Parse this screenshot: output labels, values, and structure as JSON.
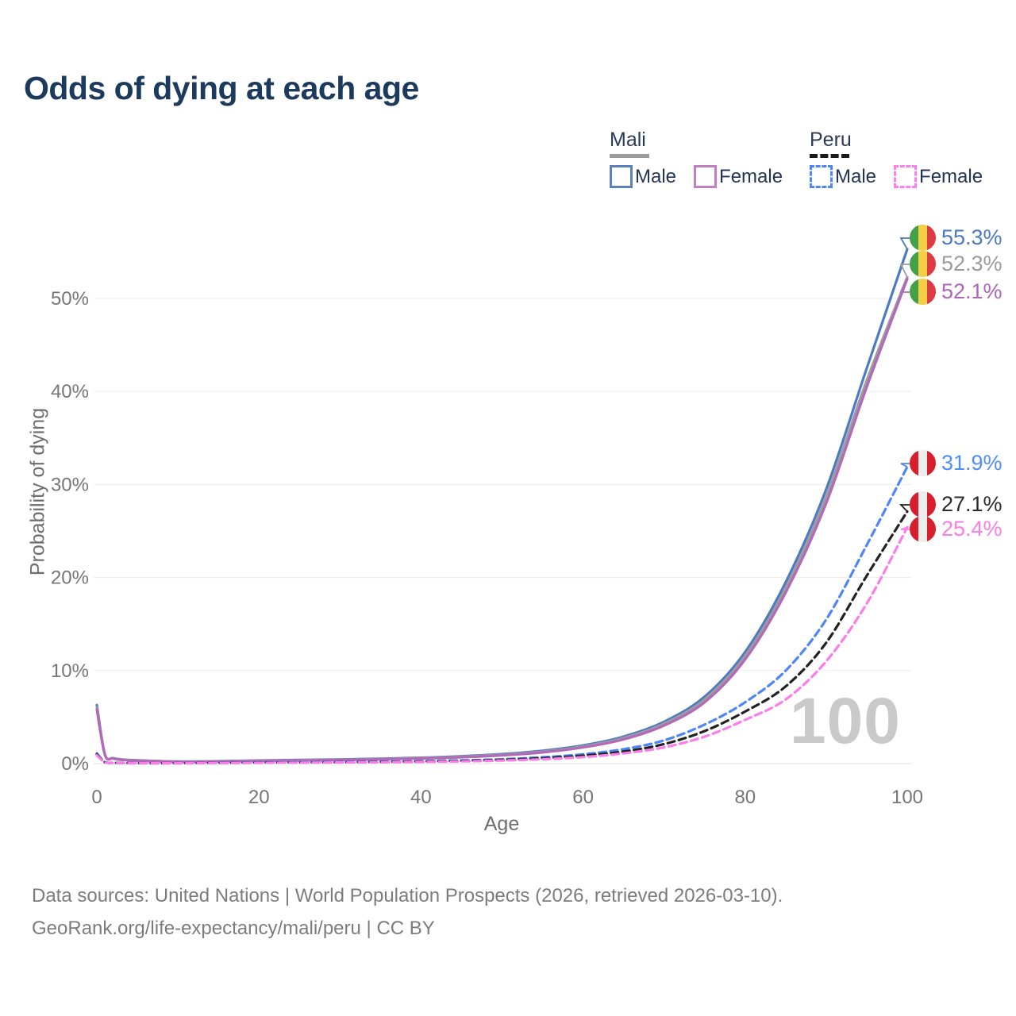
{
  "title": "Odds of dying at each age",
  "watermark": "100",
  "legend": {
    "groups": [
      {
        "name": "Mali",
        "line_style": "solid",
        "underline_color": "#9b9b9b",
        "items": [
          {
            "label": "Male",
            "color": "#5b80ba"
          },
          {
            "label": "Female",
            "color": "#c07fbe"
          }
        ]
      },
      {
        "name": "Peru",
        "line_style": "dashed",
        "underline_color": "#1a1a1a",
        "items": [
          {
            "label": "Male",
            "color": "#4f86f7"
          },
          {
            "label": "Female",
            "color": "#fc7ef0"
          }
        ]
      }
    ]
  },
  "axes": {
    "x": {
      "label": "Age",
      "tick_labels": [
        "0",
        "20",
        "40",
        "60",
        "80",
        "100"
      ]
    },
    "y": {
      "label": "Probability of dying",
      "tick_labels": [
        "0%",
        "10%",
        "20%",
        "30%",
        "40%",
        "50%"
      ]
    }
  },
  "flags": {
    "mali": [
      "#43a047",
      "#f4cf45",
      "#dc3a45"
    ],
    "peru": [
      "#d81f2e",
      "#ededed",
      "#d81f2e"
    ]
  },
  "footer": {
    "line1": "Data sources: United Nations | World Population Prospects (2026, retrieved 2026-03-10).",
    "line2": "GeoRank.org/life-expectancy/mali/peru | CC BY"
  },
  "chart_data": {
    "type": "line",
    "title": "Odds of dying at each age",
    "xlabel": "Age",
    "ylabel": "Probability of dying",
    "x_ticks": [
      0,
      20,
      40,
      60,
      80,
      100
    ],
    "y_ticks_pct": [
      0,
      10,
      20,
      30,
      40,
      50
    ],
    "xlim": [
      0,
      100
    ],
    "ylim_pct": [
      0,
      56
    ],
    "grid": "horizontal",
    "legend_position": "top-right",
    "ages": [
      0,
      1,
      2,
      3,
      5,
      10,
      15,
      20,
      25,
      30,
      35,
      40,
      45,
      50,
      55,
      60,
      65,
      70,
      75,
      80,
      85,
      90,
      95,
      100
    ],
    "series": [
      {
        "name": "Mali Male",
        "country": "Mali",
        "sex": "Male",
        "style": "solid",
        "color": "#4d7ac2",
        "label_color": "#4b79c0",
        "end_label": "55.3%",
        "flag": "mali",
        "values_pct": [
          6.3,
          1.0,
          0.6,
          0.45,
          0.35,
          0.22,
          0.26,
          0.33,
          0.39,
          0.45,
          0.53,
          0.63,
          0.79,
          1.02,
          1.38,
          1.95,
          2.9,
          4.5,
          7.2,
          12.0,
          19.5,
          29.5,
          42.5,
          55.3
        ]
      },
      {
        "name": "Mali Both sexes",
        "country": "Mali",
        "sex": "Both",
        "style": "solid",
        "color": "#9d9d9d",
        "label_color": "#9b9b9b",
        "end_label": "52.3%",
        "flag": "mali",
        "values_pct": [
          6.05,
          0.97,
          0.57,
          0.42,
          0.33,
          0.21,
          0.24,
          0.3,
          0.36,
          0.41,
          0.49,
          0.59,
          0.73,
          0.95,
          1.28,
          1.84,
          2.75,
          4.3,
          6.9,
          11.6,
          18.9,
          28.7,
          41.2,
          52.3
        ]
      },
      {
        "name": "Mali Female",
        "country": "Mali",
        "sex": "Female",
        "style": "solid",
        "color": "#b269b8",
        "label_color": "#ab66b8",
        "end_label": "52.1%",
        "flag": "mali",
        "values_pct": [
          5.8,
          0.93,
          0.55,
          0.4,
          0.31,
          0.2,
          0.22,
          0.28,
          0.33,
          0.38,
          0.45,
          0.55,
          0.68,
          0.89,
          1.2,
          1.74,
          2.6,
          4.1,
          6.6,
          11.2,
          18.4,
          28.0,
          40.5,
          52.1
        ]
      },
      {
        "name": "Peru Male",
        "country": "Peru",
        "sex": "Male",
        "style": "dashed",
        "color": "#4f86f7",
        "label_color": "#4f8df7",
        "end_label": "31.9%",
        "flag": "peru",
        "values_pct": [
          1.1,
          0.15,
          0.09,
          0.07,
          0.05,
          0.05,
          0.09,
          0.13,
          0.16,
          0.18,
          0.21,
          0.26,
          0.34,
          0.47,
          0.68,
          1.0,
          1.55,
          2.5,
          4.2,
          6.6,
          10.0,
          15.5,
          23.5,
          31.9
        ]
      },
      {
        "name": "Peru Both sexes",
        "country": "Peru",
        "sex": "Both",
        "style": "dashed",
        "color": "#222222",
        "label_color": "#2b2b2b",
        "end_label": "27.1%",
        "flag": "peru",
        "values_pct": [
          1.0,
          0.13,
          0.08,
          0.06,
          0.045,
          0.04,
          0.07,
          0.1,
          0.12,
          0.14,
          0.17,
          0.22,
          0.29,
          0.4,
          0.57,
          0.85,
          1.3,
          2.1,
          3.5,
          5.6,
          8.3,
          13.0,
          20.2,
          27.1
        ]
      },
      {
        "name": "Peru Female",
        "country": "Peru",
        "sex": "Female",
        "style": "dashed",
        "color": "#fb7de8",
        "label_color": "#fd7de5",
        "end_label": "25.4%",
        "flag": "peru",
        "values_pct": [
          0.9,
          0.12,
          0.07,
          0.05,
          0.04,
          0.035,
          0.055,
          0.08,
          0.1,
          0.12,
          0.14,
          0.18,
          0.24,
          0.33,
          0.47,
          0.7,
          1.1,
          1.75,
          2.9,
          4.7,
          6.9,
          11.0,
          17.2,
          25.4
        ]
      }
    ]
  }
}
